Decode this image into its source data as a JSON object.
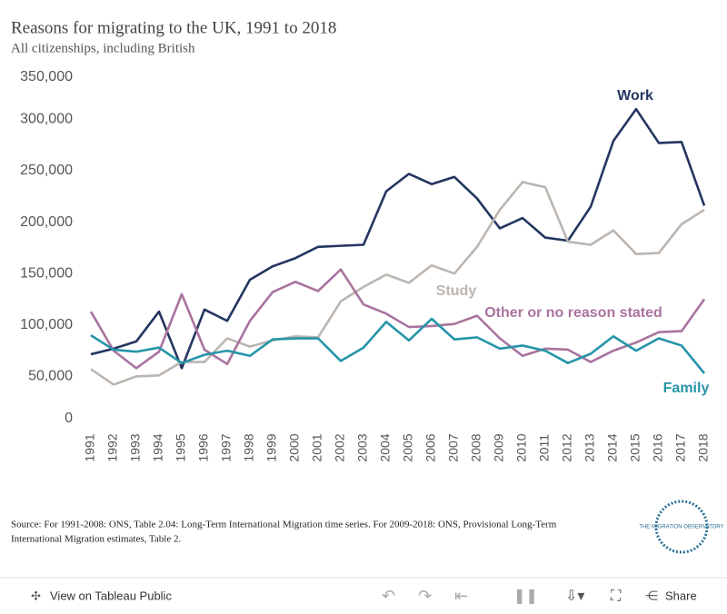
{
  "chart_data": {
    "type": "line",
    "title": "Reasons for migrating to the UK, 1991 to 2018",
    "subtitle": "All citizenships, including British",
    "categories": [
      "1991",
      "1992",
      "1993",
      "1994",
      "1995",
      "1996",
      "1997",
      "1998",
      "1999",
      "2000",
      "2001",
      "2002",
      "2003",
      "2004",
      "2005",
      "2006",
      "2007",
      "2008",
      "2009",
      "2010",
      "2011",
      "2012",
      "2013",
      "2014",
      "2015",
      "2016",
      "2017",
      "2018"
    ],
    "series": [
      {
        "name": "Work",
        "color": "#243561",
        "values": [
          71500,
          77000,
          84000,
          113000,
          58000,
          115000,
          104000,
          144000,
          157000,
          165000,
          176000,
          177000,
          178000,
          230000,
          247000,
          237000,
          244000,
          223000,
          194000,
          204000,
          185000,
          182000,
          215000,
          279000,
          310000,
          277000,
          278000,
          216000
        ]
      },
      {
        "name": "Study",
        "color": "#bcb5b0",
        "values": [
          57000,
          42000,
          50000,
          51000,
          64000,
          64000,
          87000,
          79000,
          85000,
          89000,
          88000,
          123000,
          137000,
          149000,
          141000,
          158000,
          150000,
          176000,
          212000,
          239000,
          234000,
          181000,
          178000,
          192000,
          169000,
          170000,
          198000,
          212000
        ]
      },
      {
        "name": "Other or no reason stated",
        "color": "#a9739e",
        "values": [
          113000,
          75000,
          58000,
          74000,
          130000,
          76000,
          62000,
          104000,
          132000,
          142000,
          133000,
          154000,
          120000,
          111000,
          98000,
          99000,
          101000,
          109000,
          87000,
          70000,
          77000,
          76000,
          64000,
          75000,
          83000,
          93000,
          94000,
          125000
        ]
      },
      {
        "name": "Family",
        "color": "#2595a8",
        "values": [
          90000,
          76000,
          74000,
          78000,
          63000,
          71000,
          75000,
          70000,
          86000,
          87000,
          87000,
          65000,
          78000,
          103000,
          85000,
          106000,
          86000,
          88000,
          77000,
          80000,
          75000,
          63000,
          72000,
          89000,
          75000,
          87000,
          80000,
          53000
        ]
      }
    ],
    "ylim": [
      0,
      350000
    ],
    "yticks": [
      0,
      {
        "value": 50000,
        "label": "50,000"
      },
      {
        "value": 100000,
        "label": "100,000"
      },
      {
        "value": 150000,
        "label": "150,000"
      },
      {
        "value": 200000,
        "label": "200,000"
      },
      {
        "value": 250000,
        "label": "250,000"
      },
      {
        "value": 300000,
        "label": "300,000"
      },
      {
        "value": 350000,
        "label": "350,000"
      }
    ],
    "grid": false
  },
  "source": "Source: For 1991-2008: ONS, Table 2.04: Long-Term International Migration time series. For 2009-2018: ONS, Provisional Long-Term International Migration estimates, Table 2.",
  "logo": "THE MIGRATION OBSERVATORY",
  "footer": {
    "link": "View on Tableau Public",
    "share": "Share"
  }
}
